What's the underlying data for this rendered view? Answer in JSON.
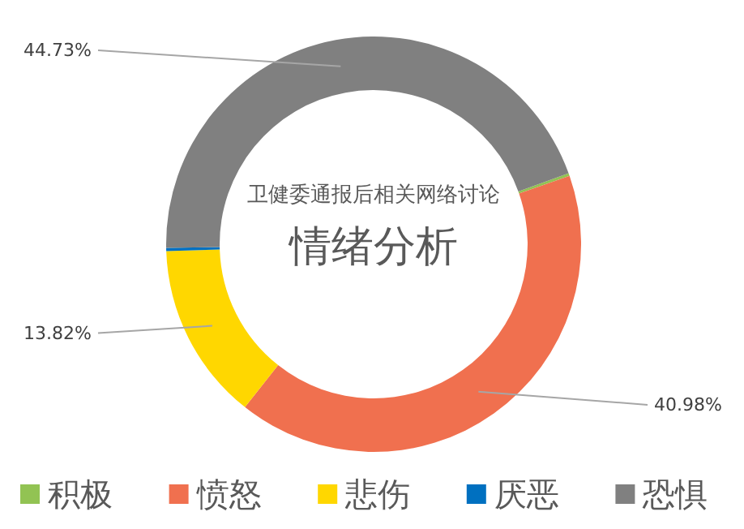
{
  "chart_data": {
    "type": "donut",
    "title": "卫健委通报后相关网络讨论",
    "subtitle": "情绪分析",
    "categories": [
      "积极",
      "愤怒",
      "悲伤",
      "厌恶",
      "恐惧"
    ],
    "values": [
      0.22,
      40.98,
      13.82,
      0.25,
      44.73
    ],
    "colors": [
      "#92c353",
      "#f0704f",
      "#ffd700",
      "#0070c0",
      "#808080"
    ],
    "value_labels": [
      null,
      "40.98%",
      "13.82%",
      null,
      "44.73%"
    ],
    "legend": "bottom"
  }
}
